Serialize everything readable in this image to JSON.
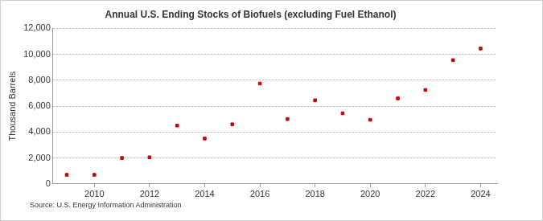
{
  "chart_data": {
    "type": "scatter",
    "title": "Annual U.S. Ending Stocks of Biofuels (excluding Fuel Ethanol)",
    "y_label": "Thousand Barrels",
    "source": "Source: U.S. Energy Information Administration",
    "x": [
      2009,
      2010,
      2011,
      2012,
      2013,
      2014,
      2015,
      2016,
      2017,
      2018,
      2019,
      2020,
      2021,
      2022,
      2023,
      2024
    ],
    "values": [
      700,
      700,
      2000,
      2050,
      4500,
      3500,
      4600,
      7750,
      5000,
      6450,
      5450,
      4950,
      6600,
      7250,
      9550,
      10450
    ],
    "color": "#cc0000",
    "marker": "square",
    "xlim": [
      2008.5,
      2024.6
    ],
    "xticks": [
      2010,
      2012,
      2014,
      2016,
      2018,
      2020,
      2022,
      2024
    ],
    "ylim": [
      0,
      12000
    ],
    "yticks": [
      0,
      {
        "value": 2000,
        "label": "2,000"
      },
      {
        "value": 4000,
        "label": "4,000"
      },
      {
        "value": 6000,
        "label": "6,000"
      },
      {
        "value": 8000,
        "label": "8,000"
      },
      {
        "value": 10000,
        "label": "10,000"
      },
      {
        "value": 12000,
        "label": "12,000"
      }
    ],
    "grid": true
  }
}
